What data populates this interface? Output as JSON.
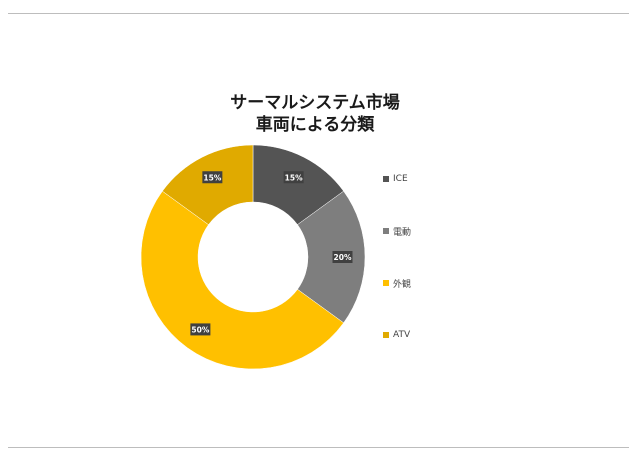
{
  "chart_data": {
    "type": "pie",
    "title_line1": "サーマルシステム市場",
    "title_line2": "車両による分類",
    "categories": [
      "ICE",
      "電動",
      "外観",
      "ATV"
    ],
    "values": [
      15,
      20,
      50,
      15
    ],
    "data_labels": [
      "15%",
      "20%",
      "50%",
      "15%"
    ],
    "colors": [
      "#545454",
      "#7e7e7e",
      "#ffc000",
      "#e0aa00"
    ],
    "legend_position": "right",
    "donut": true
  }
}
